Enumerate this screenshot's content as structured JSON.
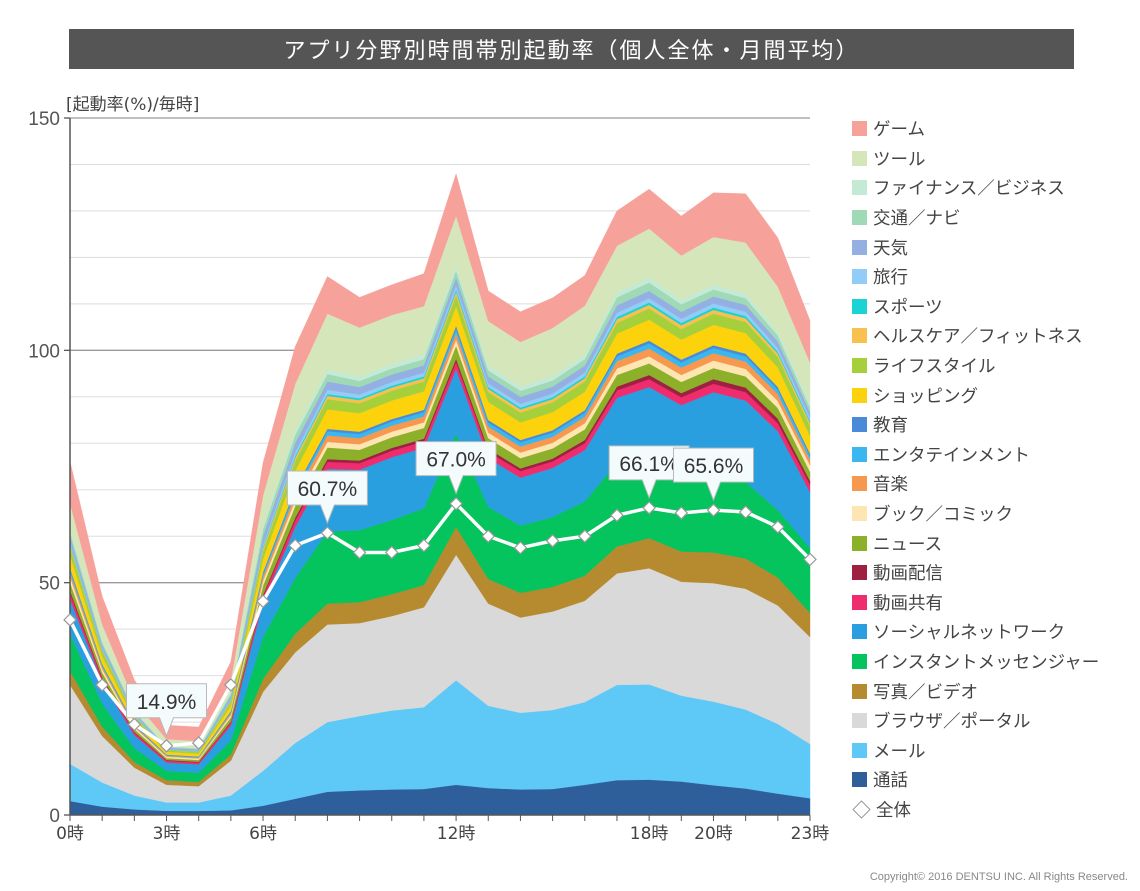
{
  "title": "アプリ分野別時間帯別起動率（個人全体・月間平均）",
  "unit_label": "[起動率(%)/毎時]",
  "copyright": "Copyright© 2016 DENTSU INC. All Rights Reserved.",
  "chart_data": {
    "type": "area",
    "stacked": true,
    "title": "アプリ分野別時間帯別起動率（個人全体・月間平均）",
    "ylabel": "[起動率(%)/毎時]",
    "ylim": [
      0,
      150
    ],
    "yticks": [
      0,
      50,
      100,
      150
    ],
    "x": [
      0,
      1,
      2,
      3,
      4,
      5,
      6,
      7,
      8,
      9,
      10,
      11,
      12,
      13,
      14,
      15,
      16,
      17,
      18,
      19,
      20,
      21,
      22,
      23
    ],
    "xtick_labels": [
      {
        "x": 0,
        "label": "0時"
      },
      {
        "x": 3,
        "label": "3時"
      },
      {
        "x": 6,
        "label": "6時"
      },
      {
        "x": 12,
        "label": "12時"
      },
      {
        "x": 18,
        "label": "18時"
      },
      {
        "x": 20,
        "label": "20時"
      },
      {
        "x": 23,
        "label": "23時"
      }
    ],
    "series": [
      {
        "name": "通話",
        "color": "#2f5f9a",
        "values": [
          3.0,
          1.8,
          1.2,
          0.9,
          0.9,
          1.0,
          2.0,
          3.5,
          5.0,
          5.3,
          5.5,
          5.6,
          6.5,
          5.8,
          5.5,
          5.6,
          6.5,
          7.5,
          7.6,
          7.2,
          6.4,
          5.7,
          4.6,
          3.6
        ]
      },
      {
        "name": "メール",
        "color": "#5ec8f6",
        "values": [
          8.0,
          5.2,
          3.0,
          1.8,
          1.8,
          3.2,
          7.5,
          12.0,
          15.0,
          16.0,
          17.0,
          17.6,
          22.5,
          17.7,
          16.5,
          17.0,
          17.8,
          20.5,
          20.5,
          18.5,
          18.0,
          17.0,
          15.0,
          11.7
        ]
      },
      {
        "name": "ブラウザ／ポータル",
        "color": "#d9d9d9",
        "values": [
          17.0,
          10.0,
          6.0,
          3.8,
          3.5,
          7.5,
          17.0,
          19.5,
          21.0,
          20.0,
          20.3,
          21.5,
          27.0,
          22.0,
          20.5,
          21.2,
          21.8,
          24.0,
          25.0,
          24.5,
          25.5,
          26.0,
          25.5,
          23.0
        ]
      },
      {
        "name": "写真／ビデオ",
        "color": "#b68a2e",
        "values": [
          3.0,
          2.0,
          1.2,
          1.0,
          0.9,
          1.3,
          2.8,
          4.0,
          4.5,
          4.5,
          4.7,
          4.8,
          6.0,
          5.3,
          5.3,
          5.3,
          5.4,
          5.8,
          6.5,
          6.5,
          6.6,
          6.5,
          6.0,
          5.2
        ]
      },
      {
        "name": "インスタントメッセンジャー",
        "color": "#05c35d",
        "values": [
          8.0,
          5.0,
          3.0,
          2.0,
          2.0,
          3.0,
          9.0,
          12.0,
          15.5,
          15.5,
          16.0,
          16.5,
          20.0,
          15.5,
          14.5,
          15.0,
          16.0,
          18.0,
          18.0,
          16.5,
          17.5,
          16.5,
          14.5,
          14.0
        ]
      },
      {
        "name": "ソーシャルネットワーク",
        "color": "#2a9fdf",
        "values": [
          7.5,
          4.6,
          2.8,
          1.8,
          1.8,
          3.3,
          7.5,
          11.0,
          13.5,
          13.0,
          13.5,
          13.0,
          14.0,
          10.5,
          10.3,
          10.6,
          11.0,
          14.0,
          14.5,
          15.0,
          17.0,
          17.5,
          17.0,
          12.0
        ]
      },
      {
        "name": "動画共有",
        "color": "#ef2d6e",
        "values": [
          1.3,
          0.8,
          0.5,
          0.4,
          0.4,
          0.6,
          1.2,
          1.4,
          1.5,
          1.4,
          1.4,
          1.4,
          1.5,
          1.4,
          1.4,
          1.4,
          1.5,
          1.6,
          1.7,
          1.7,
          1.8,
          1.8,
          1.7,
          1.6
        ]
      },
      {
        "name": "動画配信",
        "color": "#9e2142",
        "values": [
          0.5,
          0.3,
          0.2,
          0.15,
          0.15,
          0.2,
          0.4,
          0.6,
          0.6,
          0.6,
          0.6,
          0.6,
          0.7,
          0.6,
          0.6,
          0.6,
          0.7,
          0.8,
          0.9,
          0.9,
          1.0,
          1.0,
          1.0,
          0.8
        ]
      },
      {
        "name": "ニュース",
        "color": "#8db02a",
        "values": [
          1.8,
          1.0,
          0.6,
          0.4,
          0.4,
          0.9,
          2.0,
          2.5,
          2.5,
          2.3,
          2.3,
          2.3,
          2.8,
          2.3,
          2.2,
          2.2,
          2.3,
          2.5,
          2.5,
          2.4,
          2.4,
          2.4,
          2.3,
          2.0
        ]
      },
      {
        "name": "ブック／コミック",
        "color": "#fde6b2",
        "values": [
          1.2,
          0.7,
          0.4,
          0.3,
          0.3,
          0.5,
          1.0,
          1.2,
          1.2,
          1.2,
          1.2,
          1.2,
          1.3,
          1.2,
          1.2,
          1.2,
          1.3,
          1.4,
          1.5,
          1.5,
          1.6,
          1.6,
          1.5,
          1.4
        ]
      },
      {
        "name": "音楽",
        "color": "#f7984f",
        "values": [
          0.9,
          0.5,
          0.3,
          0.2,
          0.2,
          0.4,
          0.9,
          1.3,
          1.4,
          1.3,
          1.3,
          1.3,
          1.4,
          1.3,
          1.3,
          1.3,
          1.4,
          1.6,
          1.7,
          1.6,
          1.6,
          1.6,
          1.5,
          1.2
        ]
      },
      {
        "name": "エンタテインメント",
        "color": "#3ab7ee",
        "values": [
          0.6,
          0.35,
          0.2,
          0.15,
          0.15,
          0.25,
          0.6,
          0.8,
          0.9,
          0.9,
          0.9,
          0.9,
          1.0,
          0.9,
          0.9,
          0.9,
          0.9,
          1.0,
          1.1,
          1.1,
          1.1,
          1.1,
          1.0,
          0.9
        ]
      },
      {
        "name": "教育",
        "color": "#4a8ad8",
        "values": [
          0.4,
          0.25,
          0.15,
          0.1,
          0.1,
          0.2,
          0.4,
          0.5,
          0.5,
          0.5,
          0.5,
          0.5,
          0.6,
          0.5,
          0.5,
          0.5,
          0.5,
          0.6,
          0.6,
          0.6,
          0.6,
          0.6,
          0.5,
          0.4
        ]
      },
      {
        "name": "ショッピング",
        "color": "#fbd20c",
        "values": [
          2.8,
          1.7,
          1.0,
          0.6,
          0.6,
          1.2,
          2.8,
          3.8,
          4.2,
          4.0,
          4.0,
          4.0,
          4.2,
          3.9,
          3.8,
          3.9,
          4.0,
          4.3,
          4.5,
          4.3,
          4.4,
          4.4,
          4.2,
          3.8
        ]
      },
      {
        "name": "ライフスタイル",
        "color": "#a6cf3c",
        "values": [
          1.6,
          1.0,
          0.6,
          0.35,
          0.35,
          0.7,
          1.7,
          2.1,
          2.2,
          2.1,
          2.1,
          2.1,
          2.3,
          2.1,
          2.1,
          2.1,
          2.2,
          2.3,
          2.4,
          2.3,
          2.4,
          2.4,
          2.3,
          2.1
        ]
      },
      {
        "name": "ヘルスケア／フィットネス",
        "color": "#f7c04f",
        "values": [
          0.5,
          0.3,
          0.2,
          0.1,
          0.1,
          0.3,
          0.6,
          0.7,
          0.7,
          0.7,
          0.7,
          0.7,
          0.8,
          0.7,
          0.7,
          0.7,
          0.7,
          0.8,
          0.8,
          0.8,
          0.8,
          0.8,
          0.7,
          0.7
        ]
      },
      {
        "name": "スポーツ",
        "color": "#1ad4d4",
        "values": [
          0.3,
          0.2,
          0.1,
          0.08,
          0.08,
          0.15,
          0.3,
          0.4,
          0.4,
          0.4,
          0.4,
          0.4,
          0.5,
          0.4,
          0.4,
          0.4,
          0.4,
          0.5,
          0.5,
          0.5,
          0.5,
          0.5,
          0.4,
          0.4
        ]
      },
      {
        "name": "旅行",
        "color": "#91cdf6",
        "values": [
          0.5,
          0.3,
          0.2,
          0.1,
          0.1,
          0.3,
          0.6,
          0.8,
          0.9,
          0.8,
          0.8,
          0.8,
          0.9,
          0.8,
          0.8,
          0.8,
          0.8,
          0.9,
          0.9,
          0.9,
          0.9,
          0.9,
          0.8,
          0.7
        ]
      },
      {
        "name": "天気",
        "color": "#94b0e3",
        "values": [
          1.2,
          0.7,
          0.4,
          0.3,
          0.3,
          0.7,
          1.8,
          2.0,
          1.8,
          1.6,
          1.6,
          1.6,
          1.7,
          1.5,
          1.5,
          1.5,
          1.5,
          1.6,
          1.6,
          1.5,
          1.5,
          1.5,
          1.4,
          1.2
        ]
      },
      {
        "name": "交通／ナビ",
        "color": "#9fd9b6",
        "values": [
          0.9,
          0.5,
          0.3,
          0.2,
          0.2,
          0.5,
          1.4,
          1.7,
          1.6,
          1.3,
          1.3,
          1.3,
          1.5,
          1.3,
          1.3,
          1.3,
          1.4,
          1.7,
          1.8,
          1.6,
          1.5,
          1.4,
          1.3,
          1.0
        ]
      },
      {
        "name": "ファイナンス／ビジネス",
        "color": "#c4e9d4",
        "values": [
          0.6,
          0.35,
          0.2,
          0.1,
          0.1,
          0.3,
          0.8,
          1.0,
          1.0,
          1.0,
          1.0,
          1.0,
          1.1,
          1.0,
          1.0,
          1.0,
          1.0,
          1.1,
          1.1,
          1.0,
          1.0,
          1.0,
          0.9,
          0.8
        ]
      },
      {
        "name": "ツール",
        "color": "#d6e6bb",
        "values": [
          5.5,
          3.5,
          2.0,
          1.5,
          1.5,
          2.5,
          6.5,
          10.0,
          12.0,
          10.5,
          10.5,
          10.4,
          10.7,
          9.6,
          9.5,
          10.3,
          10.5,
          10.0,
          10.5,
          9.5,
          10.3,
          11.0,
          9.6,
          8.9
        ]
      },
      {
        "name": "ゲーム",
        "color": "#f7a19b",
        "values": [
          9.0,
          6.0,
          4.5,
          3.0,
          3.0,
          4.0,
          7.0,
          8.0,
          8.0,
          6.5,
          6.5,
          7.0,
          9.0,
          6.5,
          6.5,
          6.5,
          6.5,
          7.5,
          8.5,
          8.5,
          9.5,
          10.5,
          10.5,
          9.0
        ]
      }
    ],
    "overall": {
      "name": "全体",
      "values": [
        42.0,
        28.0,
        19.5,
        14.9,
        15.5,
        28.0,
        46.0,
        58.0,
        60.7,
        56.5,
        56.5,
        58.0,
        67.0,
        60.0,
        57.5,
        59.0,
        60.0,
        64.5,
        66.1,
        65.0,
        65.6,
        65.2,
        62.0,
        55.0
      ],
      "callouts": [
        {
          "x": 3,
          "label": "14.9%"
        },
        {
          "x": 8,
          "label": "60.7%"
        },
        {
          "x": 12,
          "label": "67.0%"
        },
        {
          "x": 18,
          "label": "66.1%"
        },
        {
          "x": 20,
          "label": "65.6%"
        }
      ]
    }
  }
}
